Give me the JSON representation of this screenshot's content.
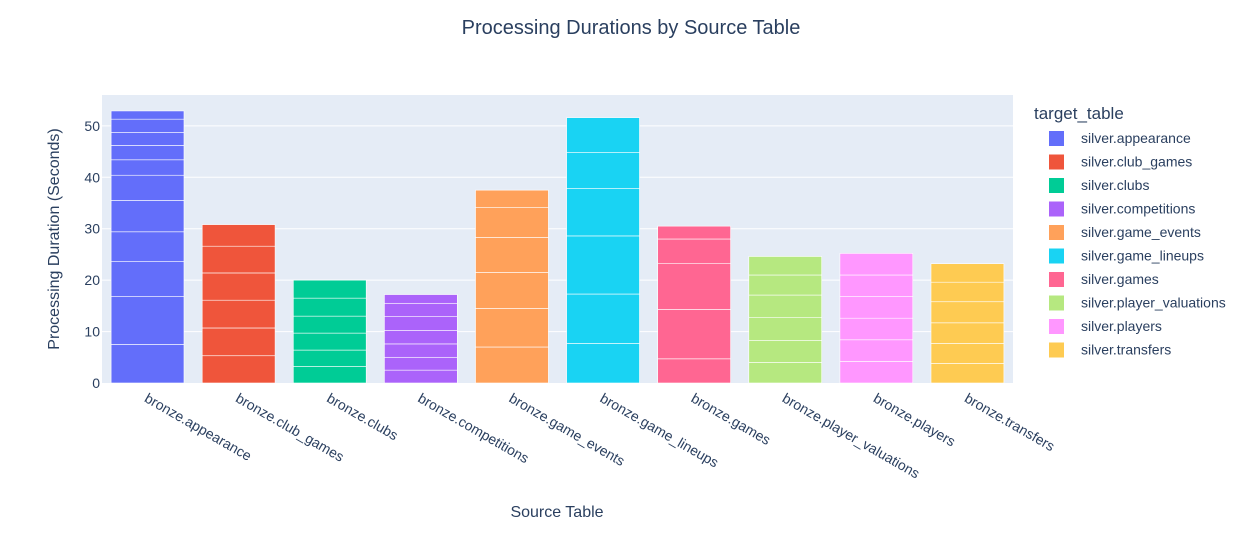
{
  "chart_data": {
    "type": "bar",
    "title": "Processing Durations by Source Table",
    "xlabel": "Source Table",
    "ylabel": "Processing Duration (Seconds)",
    "ylim": [
      0,
      56
    ],
    "yticks": [
      0,
      10,
      20,
      30,
      40,
      50
    ],
    "grid": true,
    "legend_title": "target_table",
    "legend_position": "right",
    "plot_bg": "#e5ecf6",
    "categories": [
      "bronze.appearance",
      "bronze.club_games",
      "bronze.clubs",
      "bronze.competitions",
      "bronze.game_events",
      "bronze.game_lineups",
      "bronze.games",
      "bronze.player_valuations",
      "bronze.players",
      "bronze.transfers"
    ],
    "series": [
      {
        "name": "silver.appearance",
        "color": "#636efa",
        "segments": [
          7.5,
          9.3,
          6.8,
          5.8,
          6.1,
          4.9,
          3.0,
          2.8,
          2.5,
          2.6,
          1.6
        ]
      },
      {
        "name": "silver.club_games",
        "color": "#ef553b",
        "segments": [
          5.3,
          5.4,
          5.4,
          5.3,
          5.2,
          4.2
        ]
      },
      {
        "name": "silver.clubs",
        "color": "#00cc96",
        "segments": [
          3.2,
          3.2,
          3.3,
          3.3,
          3.5,
          3.5
        ]
      },
      {
        "name": "silver.competitions",
        "color": "#ab63fa",
        "segments": [
          2.5,
          2.5,
          2.6,
          2.6,
          2.7,
          2.6,
          1.7
        ]
      },
      {
        "name": "silver.game_events",
        "color": "#ffa15a",
        "segments": [
          7.0,
          7.5,
          7.0,
          6.8,
          5.8,
          3.4
        ]
      },
      {
        "name": "silver.game_lineups",
        "color": "#19d3f3",
        "segments": [
          7.7,
          9.6,
          11.3,
          9.2,
          7.0,
          6.8
        ]
      },
      {
        "name": "silver.games",
        "color": "#ff6692",
        "segments": [
          4.7,
          9.6,
          8.9,
          4.8,
          2.5
        ]
      },
      {
        "name": "silver.player_valuations",
        "color": "#b6e880",
        "segments": [
          4.0,
          4.3,
          4.4,
          4.4,
          3.9,
          3.6
        ]
      },
      {
        "name": "silver.players",
        "color": "#ff97ff",
        "segments": [
          4.2,
          4.2,
          4.2,
          4.2,
          4.2,
          4.2
        ]
      },
      {
        "name": "silver.transfers",
        "color": "#fecb52",
        "segments": [
          3.8,
          3.9,
          4.0,
          4.1,
          3.8,
          3.6
        ]
      }
    ]
  }
}
